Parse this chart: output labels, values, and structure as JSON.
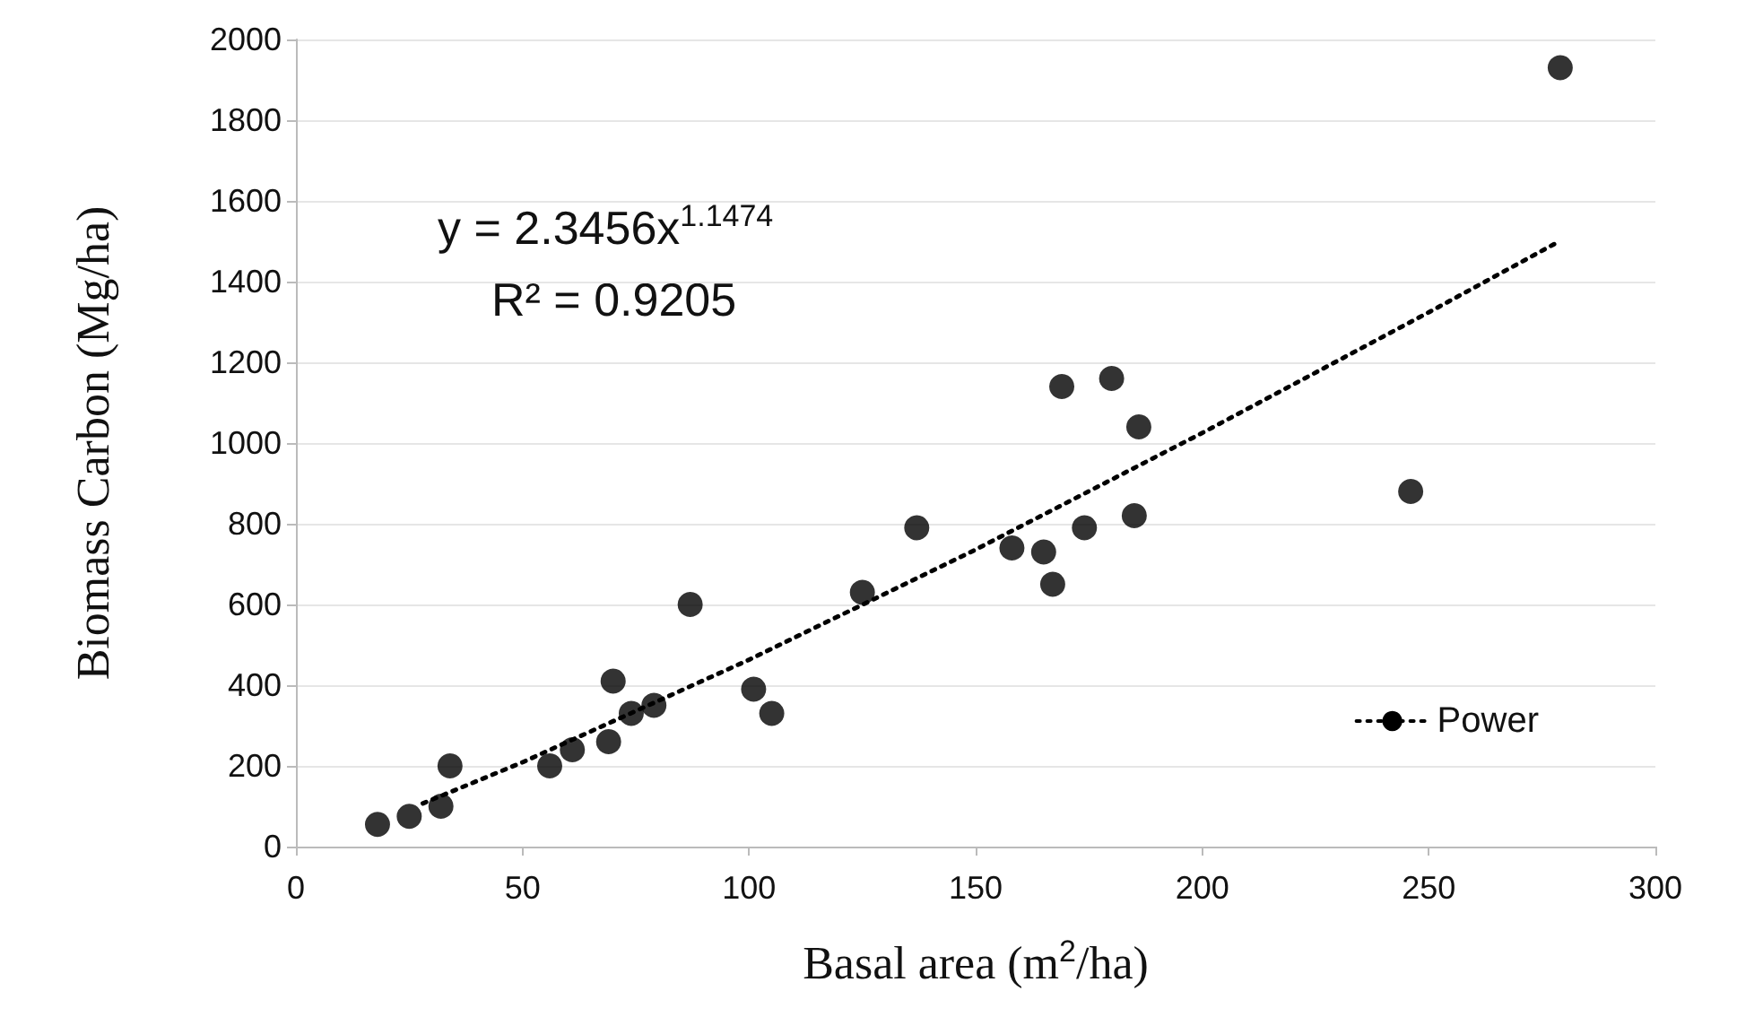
{
  "chart_data": {
    "type": "scatter",
    "xlabel": "Basal area (m$^{2}$/ha)",
    "ylabel": "Biomass Carbon (Mg/ha)",
    "annotations": [
      "y = 2.3456x$^{1.1474}$",
      "R² = 0.9205"
    ],
    "xlim": [
      0,
      300
    ],
    "xticks": [
      0,
      50,
      100,
      150,
      200,
      250,
      300
    ],
    "ylim": [
      0,
      2000
    ],
    "yticks": [
      0,
      200,
      400,
      600,
      800,
      1000,
      1200,
      1400,
      1600,
      1800,
      2000
    ],
    "grid": "y",
    "legend": "bottom right",
    "marker": "circle",
    "series": [
      {
        "color": "#000000",
        "x": [
          18,
          25,
          32,
          34,
          56,
          61,
          69,
          70,
          74,
          79,
          87,
          101,
          105,
          125,
          137,
          158,
          165,
          167,
          169,
          174,
          180,
          185,
          186,
          246,
          279
        ],
        "values": [
          55,
          75,
          100,
          200,
          200,
          240,
          260,
          410,
          330,
          350,
          600,
          390,
          330,
          630,
          790,
          740,
          730,
          650,
          1140,
          790,
          1160,
          820,
          1040,
          880,
          1930
        ]
      },
      {
        "type": "line",
        "name": "Power",
        "color": "#000000",
        "line_style": "dotted",
        "marker": "none",
        "x": [
          28,
          50,
          100,
          150,
          200,
          250,
          279
        ],
        "values": [
          107,
          209,
          463,
          736,
          1025,
          1324,
          1501
        ]
      }
    ]
  }
}
